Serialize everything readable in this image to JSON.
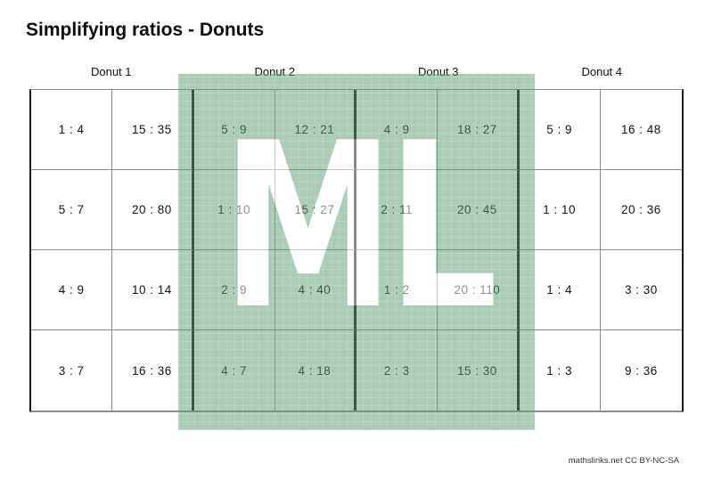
{
  "title": "Simplifying ratios - Donuts",
  "donuts": [
    {
      "label": "Donut 1",
      "cells": [
        [
          "1 : 4",
          "15 : 35"
        ],
        [
          "5 : 7",
          "20 : 80"
        ],
        [
          "4 : 9",
          "10 : 14"
        ],
        [
          "3 : 7",
          "16 : 36"
        ]
      ]
    },
    {
      "label": "Donut 2",
      "cells": [
        [
          "5 : 9",
          "12 : 21"
        ],
        [
          "1 : 10",
          "15 : 27"
        ],
        [
          "2 : 9",
          "4 : 40"
        ],
        [
          "4 : 7",
          "4 : 18"
        ]
      ]
    },
    {
      "label": "Donut 3",
      "cells": [
        [
          "4 : 9",
          "18 : 27"
        ],
        [
          "2 : 11",
          "20 : 45"
        ],
        [
          "1 : 2",
          "20 : 110"
        ],
        [
          "2 : 3",
          "15 : 30"
        ]
      ]
    },
    {
      "label": "Donut 4",
      "cells": [
        [
          "5 : 9",
          "16 : 48"
        ],
        [
          "1 : 10",
          "20 : 36"
        ],
        [
          "1 : 4",
          "3 : 30"
        ],
        [
          "1 : 3",
          "9 : 36"
        ]
      ]
    }
  ],
  "watermark": {
    "text": "ML",
    "green": "#5d9f75",
    "letter_color": "#ffffff"
  },
  "footer": {
    "credit": "mathslinks.net  CC BY-NC-SA"
  }
}
